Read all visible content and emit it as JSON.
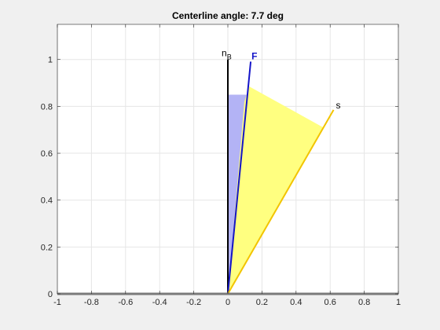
{
  "chart_data": {
    "type": "line",
    "title": "Centerline angle: 7.7 deg",
    "xlabel": "",
    "ylabel": "",
    "xlim": [
      -1,
      1
    ],
    "ylim": [
      0,
      1.15
    ],
    "x_ticks": [
      -1,
      -0.8,
      -0.6,
      -0.4,
      -0.2,
      0,
      0.2,
      0.4,
      0.6,
      0.8,
      1
    ],
    "x_tick_labels": [
      "-1",
      "-0.8",
      "-0.6",
      "-0.4",
      "-0.2",
      "0",
      "0.2",
      "0.4",
      "0.6",
      "0.8",
      "1"
    ],
    "y_ticks": [
      0,
      0.2,
      0.4,
      0.6,
      0.8,
      1
    ],
    "y_tick_labels": [
      "0",
      "0.2",
      "0.4",
      "0.6",
      "0.8",
      "1"
    ],
    "grid": true,
    "series": [
      {
        "name": "n",
        "label_main": "n",
        "label_sub": "B",
        "color": "#000000",
        "x": [
          0,
          0
        ],
        "y": [
          0,
          1.0
        ]
      },
      {
        "name": "F",
        "label_main": "F",
        "label_sub": "",
        "color": "#1414c8",
        "x": [
          0,
          0.134
        ],
        "y": [
          0,
          0.991
        ]
      },
      {
        "name": "s",
        "label_main": "s",
        "label_sub": "",
        "color": "#f2c400",
        "x": [
          0,
          0.62
        ],
        "y": [
          0,
          0.785
        ]
      }
    ],
    "areas": [
      {
        "color": "#b3b3f5",
        "x": [
          0,
          0,
          0.117,
          0.11
        ],
        "y": [
          0,
          0.85,
          0.85,
          0.82
        ]
      },
      {
        "color": "#ffff80",
        "x": [
          0,
          0.097,
          0.125,
          0.56
        ],
        "y": [
          0,
          0.82,
          0.885,
          0.71
        ]
      }
    ]
  }
}
